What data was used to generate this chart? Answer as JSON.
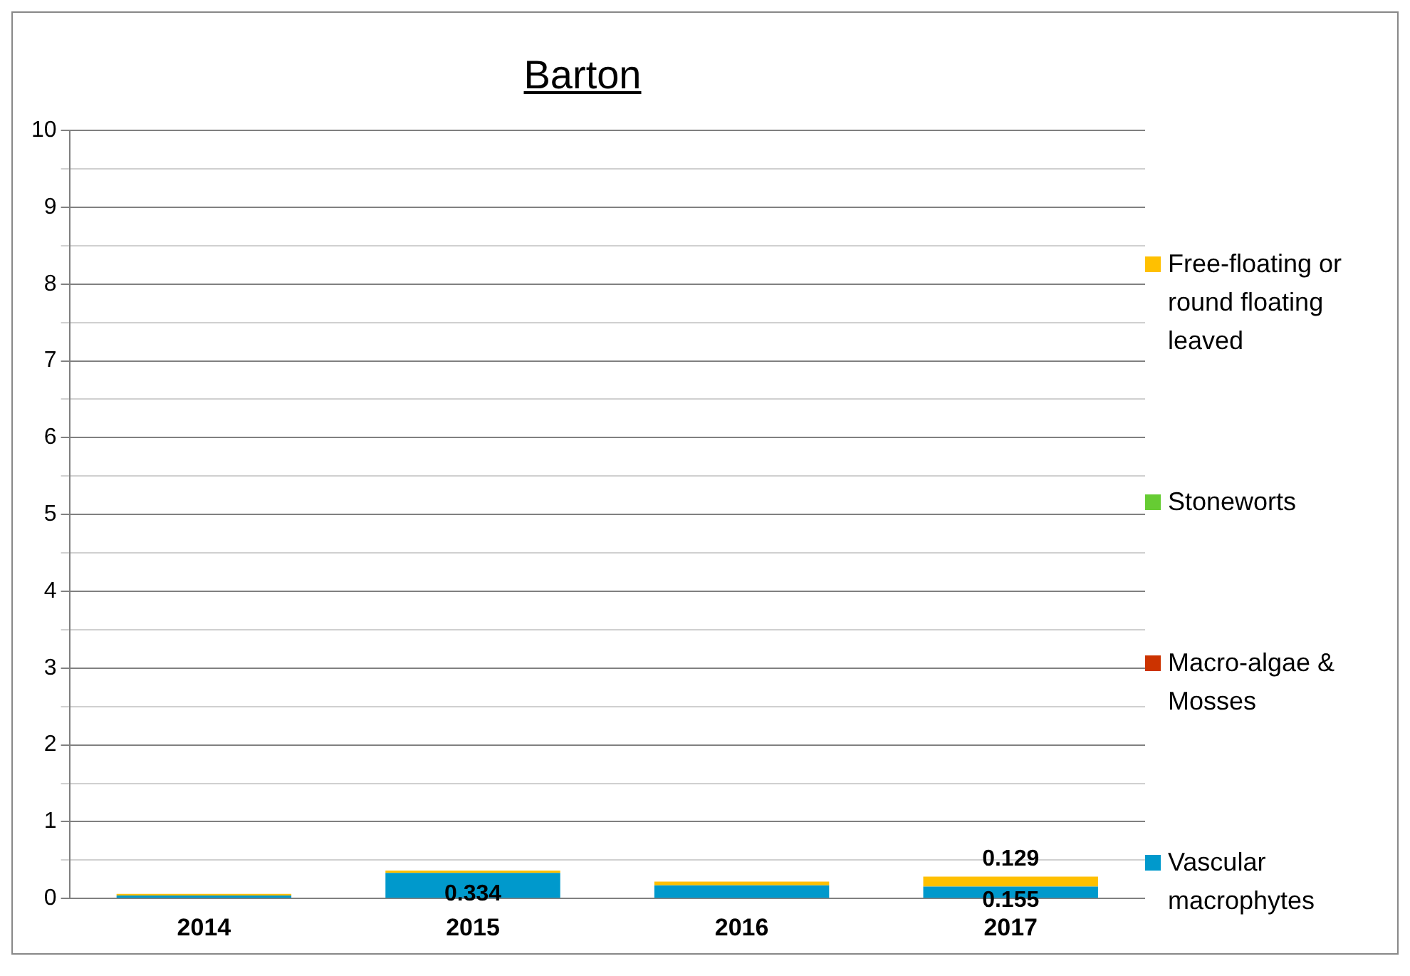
{
  "chart_data": {
    "type": "bar",
    "title": "Barton",
    "stacked": true,
    "categories": [
      "2014",
      "2015",
      "2016",
      "2017"
    ],
    "series": [
      {
        "name": "Vascular macrophytes",
        "color": "#0099cc",
        "values": [
          0.04,
          0.334,
          0.17,
          0.155
        ],
        "value_labels": [
          null,
          "0.334",
          null,
          "0.155"
        ]
      },
      {
        "name": "Macro-algae & Mosses",
        "color": "#cc3300",
        "values": [
          0,
          0,
          0,
          0
        ]
      },
      {
        "name": "Stoneworts",
        "color": "#66cc33",
        "values": [
          0,
          0,
          0,
          0
        ]
      },
      {
        "name": "Free-floating or round floating leaved",
        "color": "#ffc000",
        "values": [
          0.02,
          0.03,
          0.05,
          0.129
        ],
        "value_labels": [
          null,
          null,
          null,
          "0.129"
        ]
      }
    ],
    "ylim": [
      0,
      10
    ],
    "yticks": [
      0,
      {
        "value": 0.5,
        "label": null
      },
      1,
      {
        "value": 1.5,
        "label": null
      },
      2,
      {
        "value": 2.5,
        "label": null
      },
      3,
      {
        "value": 3.5,
        "label": null
      },
      4,
      {
        "value": 4.5,
        "label": null
      },
      5,
      {
        "value": 5.5,
        "label": null
      },
      6,
      {
        "value": 6.5,
        "label": null
      },
      7,
      {
        "value": 7.5,
        "label": null
      },
      8,
      {
        "value": 8.5,
        "label": null
      },
      9,
      {
        "value": 9.5,
        "label": null
      },
      10
    ],
    "grid": "y",
    "legend": "right"
  }
}
